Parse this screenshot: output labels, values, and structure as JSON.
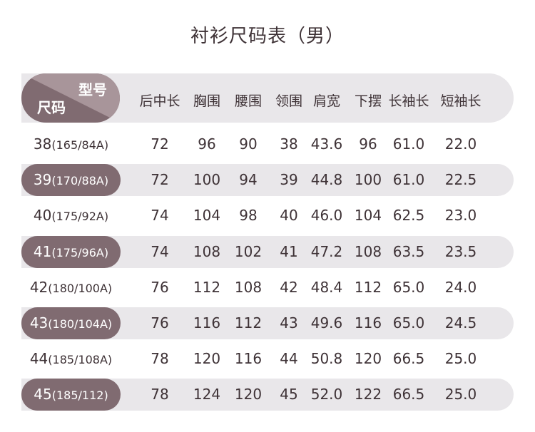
{
  "title": "衬衫尺码表（男）",
  "corner": {
    "top_label": "型号",
    "bottom_label": "尺码"
  },
  "columns": [
    "后中长",
    "胸围",
    "腰围",
    "领围",
    "肩宽",
    "下摆",
    "长袖长",
    "短袖长"
  ],
  "colors": {
    "accent": "#806b71",
    "accent_light": "#a8959a",
    "band": "#e9e7ea",
    "text": "#3e3236"
  },
  "rows": [
    {
      "size": "38",
      "spec": "(165/84A)",
      "values": [
        "72",
        "96",
        "90",
        "38",
        "43.6",
        "96",
        "61.0",
        "22.0"
      ],
      "shaded": false
    },
    {
      "size": "39",
      "spec": "(170/88A)",
      "values": [
        "72",
        "100",
        "94",
        "39",
        "44.8",
        "100",
        "61.0",
        "22.5"
      ],
      "shaded": true
    },
    {
      "size": "40",
      "spec": "(175/92A)",
      "values": [
        "74",
        "104",
        "98",
        "40",
        "46.0",
        "104",
        "62.5",
        "23.0"
      ],
      "shaded": false
    },
    {
      "size": "41",
      "spec": "(175/96A)",
      "values": [
        "74",
        "108",
        "102",
        "41",
        "47.2",
        "108",
        "63.5",
        "23.5"
      ],
      "shaded": true
    },
    {
      "size": "42",
      "spec": "(180/100A)",
      "values": [
        "76",
        "112",
        "108",
        "42",
        "48.4",
        "112",
        "65.0",
        "24.0"
      ],
      "shaded": false
    },
    {
      "size": "43",
      "spec": "(180/104A)",
      "values": [
        "76",
        "116",
        "112",
        "43",
        "49.6",
        "116",
        "65.0",
        "24.5"
      ],
      "shaded": true
    },
    {
      "size": "44",
      "spec": "(185/108A)",
      "values": [
        "78",
        "120",
        "116",
        "44",
        "50.8",
        "120",
        "66.5",
        "25.0"
      ],
      "shaded": false
    },
    {
      "size": "45",
      "spec": "(185/112)",
      "values": [
        "78",
        "124",
        "120",
        "45",
        "52.0",
        "122",
        "66.5",
        "25.0"
      ],
      "shaded": true
    }
  ]
}
